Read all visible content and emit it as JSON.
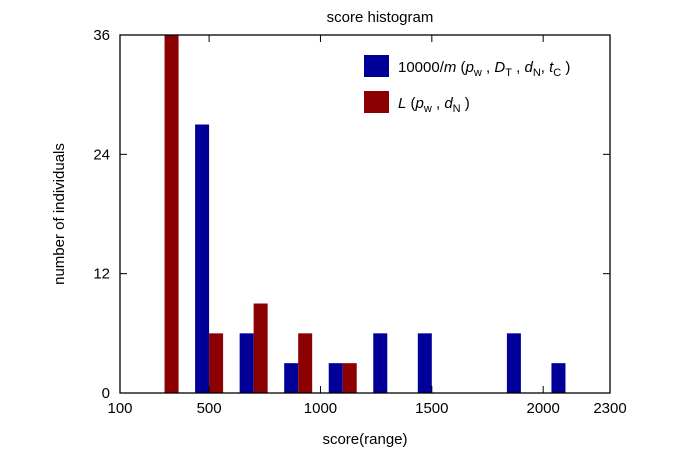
{
  "chart_data": {
    "type": "bar",
    "title": "score histogram",
    "xlabel": "score(range)",
    "ylabel": "number of individuals",
    "xlim": [
      100,
      2300
    ],
    "ylim": [
      0,
      36
    ],
    "xticks": [
      100,
      500,
      1000,
      1500,
      2000,
      2300
    ],
    "xtick_labels": [
      "100",
      "500",
      "1000",
      "1500",
      "2000",
      "2300"
    ],
    "yticks": [
      0,
      12,
      24,
      36
    ],
    "ytick_labels": [
      "0",
      "12",
      "24",
      "36"
    ],
    "grid": false,
    "legend_position": "top-right",
    "bin_centers": [
      300,
      500,
      700,
      900,
      1100,
      1300,
      1500,
      1700,
      1900,
      2100
    ],
    "series": [
      {
        "name": "10000/m (p_w , D_T , d_N, t_C )",
        "color": "#000099",
        "values": [
          0,
          27,
          6,
          3,
          3,
          6,
          6,
          0,
          6,
          3
        ]
      },
      {
        "name": "L (p_w , d_N )",
        "color": "#8b0000",
        "values": [
          36,
          6,
          9,
          6,
          3,
          0,
          0,
          0,
          0,
          0
        ]
      }
    ]
  },
  "legend": {
    "blue": {
      "main": "10000/",
      "m": "m",
      "open": " (",
      "p": "p",
      "w": "w",
      "sep1": " , ",
      "D": "D",
      "T": "T",
      "sep2": " , ",
      "d": "d",
      "N": "N",
      "sep3": ", ",
      "t": "t",
      "C": "C",
      "close": " )"
    },
    "red": {
      "L": "L",
      "open": " (",
      "p": "p",
      "w": "w",
      "sep1": " , ",
      "d": "d",
      "N": "N",
      "close": " )"
    }
  }
}
